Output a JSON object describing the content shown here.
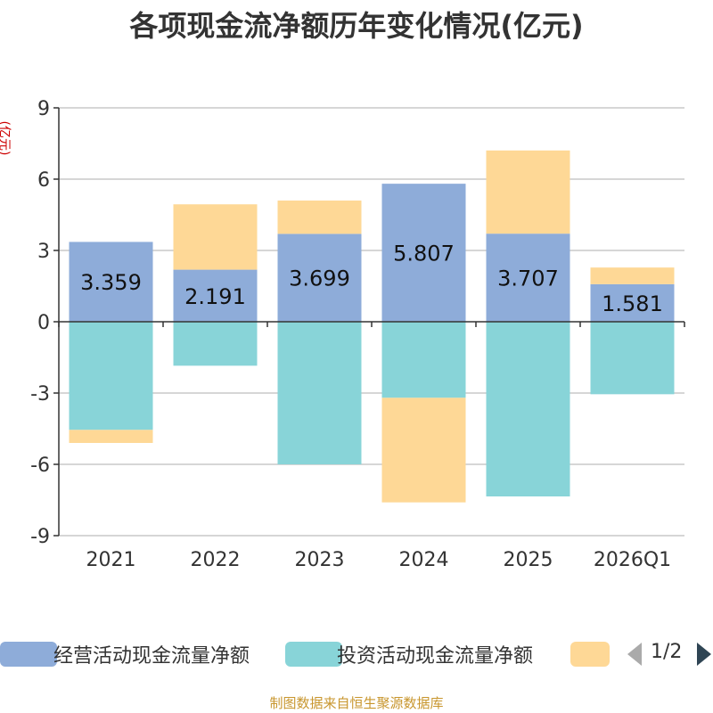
{
  "chart_data": {
    "type": "bar",
    "stacked": true,
    "title": "各项现金流净额历年变化情况(亿元)",
    "ylabel": "(亿元)",
    "categories": [
      "2021",
      "2022",
      "2023",
      "2024",
      "2025",
      "2026Q1"
    ],
    "ylim": [
      -9,
      9
    ],
    "yticks": [
      9,
      6,
      3,
      0,
      -3,
      -6,
      -9
    ],
    "grid": true,
    "legend_position": "bottom",
    "series": [
      {
        "name": "经营活动现金流量净额",
        "color": "#8eacd9",
        "values": [
          3.359,
          2.191,
          3.699,
          5.807,
          3.707,
          1.581
        ],
        "show_labels": true
      },
      {
        "name": "投资活动现金流量净额",
        "color": "#88d4d8",
        "values": [
          -4.55,
          -1.85,
          -6.0,
          -3.2,
          -7.35,
          -3.05
        ],
        "show_labels": false
      },
      {
        "name": "",
        "color": "#fed896",
        "values": [
          -0.55,
          2.75,
          1.4,
          -4.4,
          3.5,
          0.7
        ],
        "show_labels": false
      }
    ]
  },
  "legend": {
    "page_indicator": "1/2"
  },
  "footer": "制图数据来自恒生聚源数据库"
}
